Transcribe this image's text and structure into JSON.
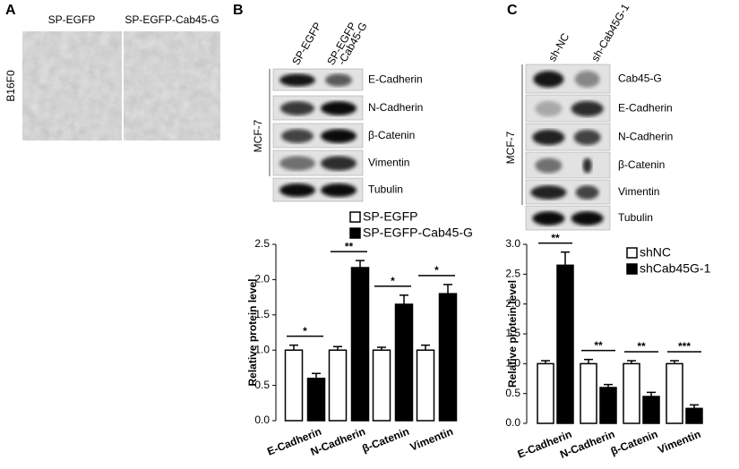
{
  "panels": {
    "a": {
      "label": "A",
      "columns": [
        "SP-EGFP",
        "SP-EGFP-Cab45-G"
      ],
      "row_label": "B16F0"
    },
    "b": {
      "label": "B",
      "lanes": [
        [
          "SP-EGFP"
        ],
        [
          "SP-EGFP",
          "-Cab45-G"
        ]
      ],
      "cell_line": "MCF-7",
      "rows": [
        "E-Cadherin",
        "N-Cadherin",
        "β-Catenin",
        "Vimentin",
        "Tubulin"
      ]
    },
    "c": {
      "label": "C",
      "lanes": [
        [
          "sh-NC"
        ],
        [
          "sh-Cab45G-1"
        ]
      ],
      "cell_line": "MCF-7",
      "rows": [
        "Cab45-G",
        "E-Cadherin",
        "N-Cadherin",
        "β-Catenin",
        "Vimentin",
        "Tubulin"
      ]
    }
  },
  "chart_data": [
    {
      "type": "bar",
      "y_label": "Relative protein level",
      "categories": [
        "E-Cadherin",
        "N-Cadherin",
        "β-Catenin",
        "Vimentin"
      ],
      "series": [
        {
          "name": "SP-EGFP",
          "color": "#ffffff",
          "values": [
            1,
            1,
            1,
            1
          ],
          "errors": [
            0.07,
            0.05,
            0.04,
            0.07
          ]
        },
        {
          "name": "SP-EGFP-Cab45-G",
          "color": "#000000",
          "values": [
            0.6,
            2.17,
            1.65,
            1.8
          ],
          "errors": [
            0.07,
            0.1,
            0.13,
            0.13
          ]
        }
      ],
      "significance": [
        "*",
        "**",
        "*",
        "*"
      ],
      "ylim": [
        0,
        2.5
      ],
      "yticks": [
        {
          "value": 0,
          "label": "0.0"
        },
        0.5,
        {
          "value": 1,
          "label": "1.0"
        },
        1.5,
        {
          "value": 2,
          "label": "2.0"
        },
        2.5
      ]
    },
    {
      "type": "bar",
      "y_label": "Relative protein level",
      "categories": [
        "E-Cadherin",
        "N-Cadherin",
        "β-Catenin",
        "Vimentin"
      ],
      "series": [
        {
          "name": "shNC",
          "color": "#ffffff",
          "values": [
            1,
            1,
            1,
            1
          ],
          "errors": [
            0.05,
            0.07,
            0.05,
            0.05
          ]
        },
        {
          "name": "shCab45G-1",
          "color": "#000000",
          "values": [
            2.65,
            0.6,
            0.45,
            0.25
          ],
          "errors": [
            0.22,
            0.05,
            0.07,
            0.06
          ]
        }
      ],
      "significance": [
        "**",
        "**",
        "**",
        "***"
      ],
      "ylim": [
        0,
        3
      ],
      "yticks": [
        {
          "value": 0,
          "label": "0.0"
        },
        0.5,
        {
          "value": 1,
          "label": "1.0"
        },
        1.5,
        {
          "value": 2,
          "label": "2.0"
        },
        2.5,
        {
          "value": 3,
          "label": "3.0"
        }
      ]
    }
  ]
}
